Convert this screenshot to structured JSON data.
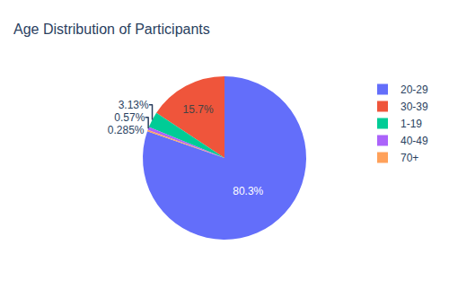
{
  "chart_data": {
    "type": "pie",
    "title": "Age Distribution of Participants",
    "categories": [
      "20-29",
      "30-39",
      "1-19",
      "40-49",
      "70+"
    ],
    "values": [
      80.3,
      15.7,
      3.13,
      0.57,
      0.285
    ],
    "value_labels": [
      "80.3%",
      "15.7%",
      "3.13%",
      "0.57%",
      "0.285%"
    ],
    "colors": [
      "#636efa",
      "#ef553b",
      "#00cc96",
      "#ab63fa",
      "#ffa15a"
    ],
    "data_labels": true,
    "legend": "upper right"
  }
}
